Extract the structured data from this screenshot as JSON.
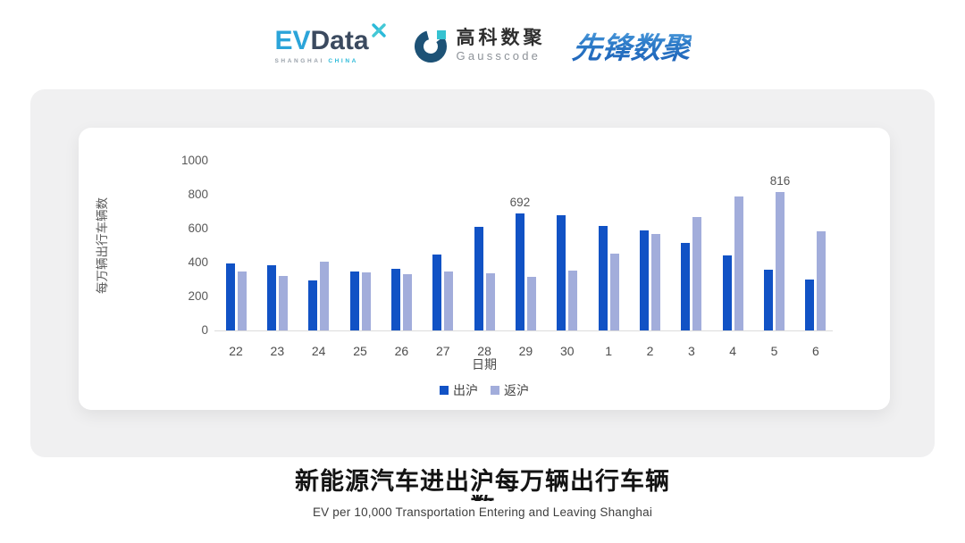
{
  "header": {
    "evdata": {
      "ev": "EV",
      "data": "Data",
      "sub_left": "SHANGHAI",
      "sub_right": "CHINA"
    },
    "gausscode": {
      "cn": "高科数聚",
      "en": "Gausscode"
    },
    "xianfeng": {
      "text": "先锋数聚"
    }
  },
  "chart_data": {
    "type": "bar",
    "categories": [
      "22",
      "23",
      "24",
      "25",
      "26",
      "27",
      "28",
      "29",
      "30",
      "1",
      "2",
      "3",
      "4",
      "5",
      "6"
    ],
    "series": [
      {
        "name": "出沪",
        "color": "#1152c5",
        "values": [
          393,
          382,
          295,
          349,
          363,
          448,
          610,
          692,
          680,
          616,
          590,
          517,
          442,
          358,
          298
        ]
      },
      {
        "name": "返沪",
        "color": "#a2addb",
        "values": [
          345,
          320,
          405,
          342,
          334,
          347,
          336,
          316,
          354,
          452,
          566,
          666,
          788,
          816,
          585
        ]
      }
    ],
    "annotations": [
      {
        "series": "出沪",
        "category": "29",
        "value": 692
      },
      {
        "series": "返沪",
        "category": "5",
        "value": 816
      }
    ],
    "xlabel": "日期",
    "ylabel": "每万辆出行车辆数",
    "ylim": [
      0,
      1000
    ],
    "yticks": [
      0,
      200,
      400,
      600,
      800,
      1000
    ],
    "legend_position": "bottom",
    "grid": false
  },
  "footer": {
    "title_line1": "新能源汽车进出沪每万辆出行车辆",
    "title_line2": "数",
    "subtitle": "EV per 10,000 Transportation Entering and Leaving Shanghai"
  },
  "colors": {
    "card_bg": "#f0f0f1",
    "axis_line": "#dcdcdc",
    "axis_text": "#595959",
    "accent_cyan": "#35c2d1",
    "evdata_navy": "#3b4a5f",
    "evdata_cyan": "#2ba4d9",
    "gausscode_navy": "#1d5276",
    "xianfeng_blue": "#2e7cc9"
  }
}
